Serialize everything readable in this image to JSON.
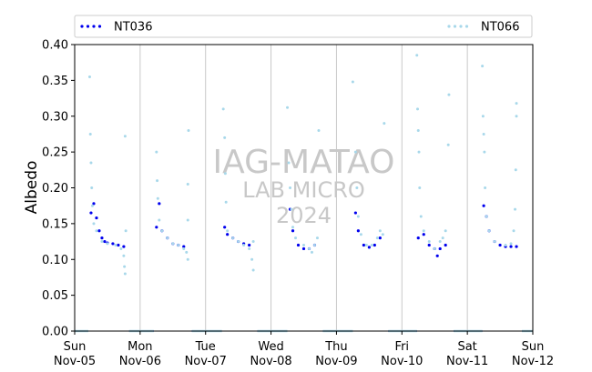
{
  "chart_data": {
    "type": "scatter",
    "title": "",
    "xlabel": "",
    "ylabel": "Albedo",
    "ylim": [
      0,
      0.4
    ],
    "y_ticks": [
      "0.00",
      "0.05",
      "0.10",
      "0.15",
      "0.20",
      "0.25",
      "0.30",
      "0.35",
      "0.40"
    ],
    "y_tick_values": [
      0,
      0.05,
      0.1,
      0.15,
      0.2,
      0.25,
      0.3,
      0.35,
      0.4
    ],
    "xlim_days": [
      "2023-11-05",
      "2023-11-12"
    ],
    "x_ticks": [
      {
        "day": "Sun",
        "date": "Nov-05"
      },
      {
        "day": "Mon",
        "date": "Nov-06"
      },
      {
        "day": "Tue",
        "date": "Nov-07"
      },
      {
        "day": "Wed",
        "date": "Nov-08"
      },
      {
        "day": "Thu",
        "date": "Nov-09"
      },
      {
        "day": "Fri",
        "date": "Nov-10"
      },
      {
        "day": "Sat",
        "date": "Nov-11"
      },
      {
        "day": "Sun",
        "date": "Nov-12"
      }
    ],
    "grid": "vertical lines at day boundaries",
    "legend_position": "top, above plot",
    "series": [
      {
        "name": "NT036",
        "color": "#0000ee",
        "style": "dotted",
        "points": [
          [
            "2023-11-05 06:00",
            0.165
          ],
          [
            "2023-11-05 07:00",
            0.178
          ],
          [
            "2023-11-05 08:00",
            0.158
          ],
          [
            "2023-11-05 09:00",
            0.14
          ],
          [
            "2023-11-05 10:00",
            0.13
          ],
          [
            "2023-11-05 11:00",
            0.125
          ],
          [
            "2023-11-05 12:00",
            0.123
          ],
          [
            "2023-11-05 14:00",
            0.122
          ],
          [
            "2023-11-05 16:00",
            0.12
          ],
          [
            "2023-11-05 18:00",
            0.118
          ],
          [
            "2023-11-06 06:00",
            0.145
          ],
          [
            "2023-11-06 07:00",
            0.178
          ],
          [
            "2023-11-06 08:00",
            0.14
          ],
          [
            "2023-11-06 10:00",
            0.13
          ],
          [
            "2023-11-06 12:00",
            0.122
          ],
          [
            "2023-11-06 14:00",
            0.12
          ],
          [
            "2023-11-06 16:00",
            0.118
          ],
          [
            "2023-11-07 07:00",
            0.145
          ],
          [
            "2023-11-07 08:00",
            0.135
          ],
          [
            "2023-11-07 10:00",
            0.13
          ],
          [
            "2023-11-07 12:00",
            0.125
          ],
          [
            "2023-11-07 14:00",
            0.122
          ],
          [
            "2023-11-07 16:00",
            0.12
          ],
          [
            "2023-11-08 07:00",
            0.17
          ],
          [
            "2023-11-08 08:00",
            0.14
          ],
          [
            "2023-11-08 10:00",
            0.12
          ],
          [
            "2023-11-08 12:00",
            0.115
          ],
          [
            "2023-11-08 14:00",
            0.115
          ],
          [
            "2023-11-08 16:00",
            0.12
          ],
          [
            "2023-11-09 07:00",
            0.165
          ],
          [
            "2023-11-09 08:00",
            0.14
          ],
          [
            "2023-11-09 10:00",
            0.12
          ],
          [
            "2023-11-09 12:00",
            0.117
          ],
          [
            "2023-11-09 14:00",
            0.12
          ],
          [
            "2023-11-09 16:00",
            0.13
          ],
          [
            "2023-11-10 06:00",
            0.13
          ],
          [
            "2023-11-10 08:00",
            0.135
          ],
          [
            "2023-11-10 10:00",
            0.12
          ],
          [
            "2023-11-10 12:00",
            0.115
          ],
          [
            "2023-11-10 13:00",
            0.105
          ],
          [
            "2023-11-10 14:00",
            0.115
          ],
          [
            "2023-11-10 16:00",
            0.12
          ],
          [
            "2023-11-11 06:00",
            0.175
          ],
          [
            "2023-11-11 07:00",
            0.16
          ],
          [
            "2023-11-11 08:00",
            0.14
          ],
          [
            "2023-11-11 10:00",
            0.125
          ],
          [
            "2023-11-11 12:00",
            0.12
          ],
          [
            "2023-11-11 14:00",
            0.118
          ],
          [
            "2023-11-11 16:00",
            0.118
          ],
          [
            "2023-11-11 18:00",
            0.118
          ]
        ]
      },
      {
        "name": "NT066",
        "color": "#a8d8ea",
        "style": "dotted",
        "points": [
          [
            "2023-11-05 05:30",
            0.355
          ],
          [
            "2023-11-05 05:45",
            0.275
          ],
          [
            "2023-11-05 06:00",
            0.235
          ],
          [
            "2023-11-05 06:15",
            0.2
          ],
          [
            "2023-11-05 06:30",
            0.175
          ],
          [
            "2023-11-05 07:00",
            0.15
          ],
          [
            "2023-11-05 08:00",
            0.14
          ],
          [
            "2023-11-05 10:00",
            0.125
          ],
          [
            "2023-11-05 12:00",
            0.122
          ],
          [
            "2023-11-05 15:00",
            0.12
          ],
          [
            "2023-11-05 17:00",
            0.115
          ],
          [
            "2023-11-05 18:00",
            0.105
          ],
          [
            "2023-11-05 18:15",
            0.09
          ],
          [
            "2023-11-05 18:30",
            0.08
          ],
          [
            "2023-11-05 18:45",
            0.14
          ],
          [
            "2023-11-05 18:30",
            0.272
          ],
          [
            "2023-11-06 06:00",
            0.25
          ],
          [
            "2023-11-06 06:15",
            0.21
          ],
          [
            "2023-11-06 06:30",
            0.185
          ],
          [
            "2023-11-06 07:00",
            0.155
          ],
          [
            "2023-11-06 08:00",
            0.14
          ],
          [
            "2023-11-06 10:00",
            0.13
          ],
          [
            "2023-11-06 12:00",
            0.122
          ],
          [
            "2023-11-06 14:00",
            0.12
          ],
          [
            "2023-11-06 16:00",
            0.115
          ],
          [
            "2023-11-06 17:00",
            0.11
          ],
          [
            "2023-11-06 17:30",
            0.1
          ],
          [
            "2023-11-06 17:30",
            0.155
          ],
          [
            "2023-11-06 17:30",
            0.205
          ],
          [
            "2023-11-06 17:45",
            0.28
          ],
          [
            "2023-11-07 06:30",
            0.31
          ],
          [
            "2023-11-07 07:00",
            0.27
          ],
          [
            "2023-11-07 07:15",
            0.22
          ],
          [
            "2023-11-07 07:30",
            0.18
          ],
          [
            "2023-11-07 08:00",
            0.14
          ],
          [
            "2023-11-07 10:00",
            0.13
          ],
          [
            "2023-11-07 12:00",
            0.125
          ],
          [
            "2023-11-07 14:00",
            0.12
          ],
          [
            "2023-11-07 16:00",
            0.115
          ],
          [
            "2023-11-07 17:00",
            0.1
          ],
          [
            "2023-11-07 17:30",
            0.085
          ],
          [
            "2023-11-07 17:30",
            0.125
          ],
          [
            "2023-11-08 06:00",
            0.312
          ],
          [
            "2023-11-08 06:30",
            0.235
          ],
          [
            "2023-11-08 07:00",
            0.2
          ],
          [
            "2023-11-08 07:30",
            0.17
          ],
          [
            "2023-11-08 08:00",
            0.145
          ],
          [
            "2023-11-08 09:00",
            0.13
          ],
          [
            "2023-11-08 12:00",
            0.12
          ],
          [
            "2023-11-08 14:00",
            0.115
          ],
          [
            "2023-11-08 15:00",
            0.11
          ],
          [
            "2023-11-08 16:00",
            0.12
          ],
          [
            "2023-11-08 17:00",
            0.13
          ],
          [
            "2023-11-08 17:30",
            0.28
          ],
          [
            "2023-11-09 06:00",
            0.348
          ],
          [
            "2023-11-09 07:00",
            0.25
          ],
          [
            "2023-11-09 07:30",
            0.2
          ],
          [
            "2023-11-09 08:00",
            0.16
          ],
          [
            "2023-11-09 09:00",
            0.135
          ],
          [
            "2023-11-09 11:00",
            0.12
          ],
          [
            "2023-11-09 13:00",
            0.12
          ],
          [
            "2023-11-09 15:00",
            0.13
          ],
          [
            "2023-11-09 16:00",
            0.14
          ],
          [
            "2023-11-09 17:00",
            0.135
          ],
          [
            "2023-11-09 17:30",
            0.29
          ],
          [
            "2023-11-10 05:30",
            0.385
          ],
          [
            "2023-11-10 05:45",
            0.31
          ],
          [
            "2023-11-10 06:00",
            0.28
          ],
          [
            "2023-11-10 06:15",
            0.25
          ],
          [
            "2023-11-10 06:30",
            0.2
          ],
          [
            "2023-11-10 07:00",
            0.16
          ],
          [
            "2023-11-10 08:00",
            0.14
          ],
          [
            "2023-11-10 10:00",
            0.125
          ],
          [
            "2023-11-10 12:00",
            0.115
          ],
          [
            "2023-11-10 14:00",
            0.125
          ],
          [
            "2023-11-10 15:00",
            0.13
          ],
          [
            "2023-11-10 16:00",
            0.14
          ],
          [
            "2023-11-10 17:00",
            0.26
          ],
          [
            "2023-11-10 17:15",
            0.33
          ],
          [
            "2023-11-11 05:30",
            0.37
          ],
          [
            "2023-11-11 05:45",
            0.3
          ],
          [
            "2023-11-11 06:00",
            0.275
          ],
          [
            "2023-11-11 06:15",
            0.25
          ],
          [
            "2023-11-11 06:30",
            0.2
          ],
          [
            "2023-11-11 07:00",
            0.16
          ],
          [
            "2023-11-11 08:00",
            0.14
          ],
          [
            "2023-11-11 10:00",
            0.125
          ],
          [
            "2023-11-11 14:00",
            0.12
          ],
          [
            "2023-11-11 16:00",
            0.122
          ],
          [
            "2023-11-11 17:00",
            0.14
          ],
          [
            "2023-11-11 17:30",
            0.17
          ],
          [
            "2023-11-11 17:45",
            0.225
          ],
          [
            "2023-11-11 18:00",
            0.3
          ],
          [
            "2023-11-11 18:00",
            0.318
          ]
        ]
      }
    ],
    "night_zero_segments": [
      [
        "2023-11-05 00:00",
        "2023-11-05 05:00"
      ],
      [
        "2023-11-05 20:00",
        "2023-11-06 05:00"
      ],
      [
        "2023-11-06 19:00",
        "2023-11-07 06:00"
      ],
      [
        "2023-11-07 19:00",
        "2023-11-08 06:00"
      ],
      [
        "2023-11-08 19:00",
        "2023-11-09 06:00"
      ],
      [
        "2023-11-09 19:00",
        "2023-11-10 05:30"
      ],
      [
        "2023-11-10 19:00",
        "2023-11-11 05:30"
      ],
      [
        "2023-11-11 20:00",
        "2023-11-12 00:00"
      ]
    ],
    "watermark": [
      "IAG-MATAO",
      "LAB MICRO",
      "2024"
    ]
  }
}
